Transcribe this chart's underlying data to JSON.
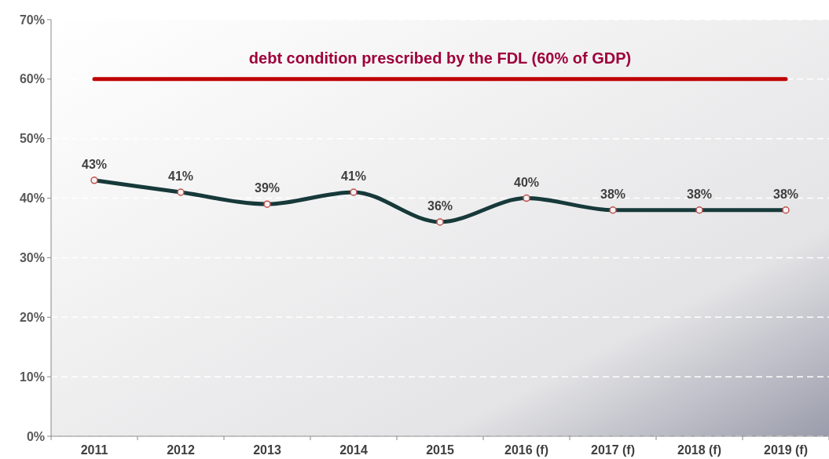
{
  "chart_data": {
    "type": "line",
    "categories": [
      "2011",
      "2012",
      "2013",
      "2014",
      "2015",
      "2016 (f)",
      "2017 (f)",
      "2018 (f)",
      "2019 (f)"
    ],
    "series": [
      {
        "color": "#17393a",
        "values": [
          43,
          41,
          39,
          41,
          36,
          40,
          38,
          38,
          38
        ],
        "value_labels": [
          "43%",
          "41%",
          "39%",
          "41%",
          "36%",
          "40%",
          "38%",
          "38%",
          "38%"
        ]
      }
    ],
    "marker": "circle",
    "line_style": "solid",
    "grid": "y",
    "ylim": [
      0,
      70
    ],
    "yticks": [
      {
        "value": 0,
        "label": "0%"
      },
      {
        "value": 10,
        "label": "10%"
      },
      {
        "value": 20,
        "label": "20%"
      },
      {
        "value": 30,
        "label": "30%"
      },
      {
        "value": 40,
        "label": "40%"
      },
      {
        "value": 50,
        "label": "50%"
      },
      {
        "value": 60,
        "label": "60%"
      },
      {
        "value": 70,
        "label": "70%"
      }
    ],
    "ref_lines": [
      {
        "axis": "y",
        "value": 60,
        "label": "debt condition prescribed by the FDL (60% of GDP)",
        "color": "#c00000"
      }
    ]
  }
}
